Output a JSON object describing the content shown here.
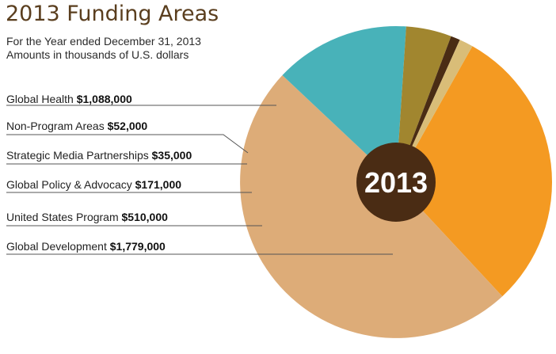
{
  "title": "2013 Funding Areas",
  "subtitle_1": "For the Year ended December 31, 2013",
  "subtitle_2": "Amounts in thousands of U.S. dollars",
  "chart_data": {
    "type": "pie",
    "center_label": "2013",
    "slices": [
      {
        "name": "Global Health",
        "value_label": "$1,088,000",
        "value": 1088000,
        "color": "#f49a22"
      },
      {
        "name": "Global Development",
        "value_label": "$1,779,000",
        "value": 1779000,
        "color": "#ddac78"
      },
      {
        "name": "United States Program",
        "value_label": "$510,000",
        "value": 510000,
        "color": "#48b2b9"
      },
      {
        "name": "Global Policy & Advocacy",
        "value_label": "$171,000",
        "value": 171000,
        "color": "#a1862f"
      },
      {
        "name": "Strategic Media Partnerships",
        "value_label": "$35,000",
        "value": 35000,
        "color": "#4a2c14"
      },
      {
        "name": "Non-Program Areas",
        "value_label": "$52,000",
        "value": 52000,
        "color": "#d9bd78"
      }
    ],
    "legend_order": [
      "Global Health",
      "Non-Program Areas",
      "Strategic Media Partnerships",
      "Global Policy & Advocacy",
      "United States Program",
      "Global Development"
    ],
    "center_color": "#4a2c14"
  }
}
